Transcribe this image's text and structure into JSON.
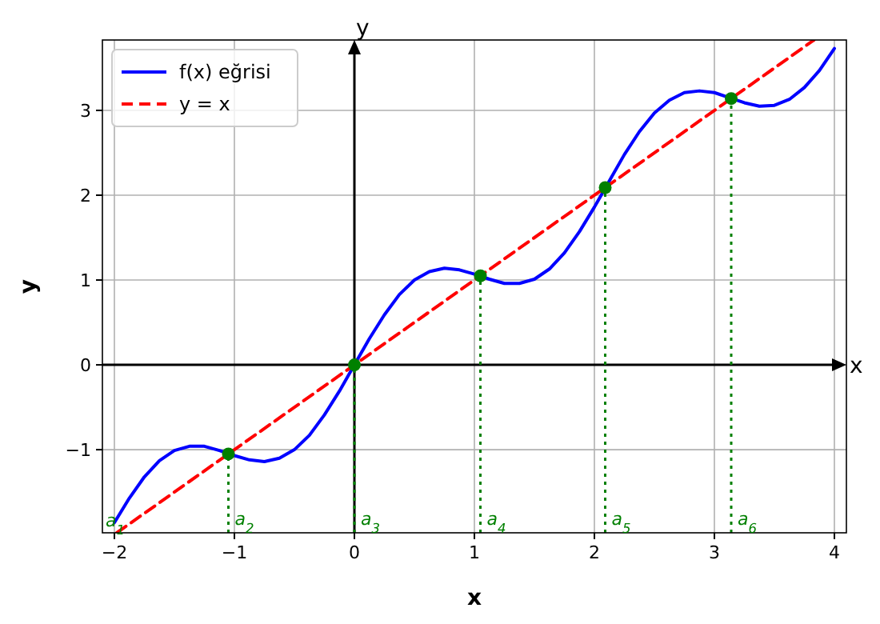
{
  "chart_data": {
    "type": "line",
    "xlabel": "x",
    "ylabel": "y",
    "xlim": [
      -2.1,
      4.1
    ],
    "ylim": [
      -1.98,
      3.83
    ],
    "xticks": [
      {
        "value": -2,
        "label": "−2"
      },
      {
        "value": -1,
        "label": "−1"
      },
      0,
      1,
      2,
      3,
      4
    ],
    "yticks": [
      {
        "value": -1,
        "label": "−1"
      },
      0,
      1,
      2,
      3
    ],
    "grid": true,
    "legend": "top left",
    "series": [
      {
        "name": "f(x) eğrisi",
        "color": "#0000ff",
        "line_style": "solid",
        "x": [
          -2,
          -1.875,
          -1.75,
          -1.625,
          -1.5,
          -1.375,
          -1.25,
          -1.125,
          -1,
          -0.875,
          -0.75,
          -0.625,
          -0.5,
          -0.375,
          -0.25,
          -0.125,
          0,
          0.125,
          0.25,
          0.375,
          0.5,
          0.625,
          0.75,
          0.875,
          1,
          1.125,
          1.25,
          1.375,
          1.5,
          1.625,
          1.75,
          1.875,
          2,
          2.125,
          2.25,
          2.375,
          2.5,
          2.625,
          2.75,
          2.875,
          3,
          3.125,
          3.25,
          3.375,
          3.5,
          3.625,
          3.75,
          3.875,
          4
        ],
        "values": [
          -1.86,
          -1.57,
          -1.32,
          -1.13,
          -1.01,
          -0.96,
          -0.96,
          -1.01,
          -1.07,
          -1.12,
          -1.14,
          -1.1,
          -1,
          -0.83,
          -0.59,
          -0.31,
          0,
          0.31,
          0.59,
          0.83,
          1,
          1.1,
          1.14,
          1.12,
          1.07,
          1.01,
          0.96,
          0.96,
          1.01,
          1.13,
          1.32,
          1.57,
          1.86,
          2.17,
          2.48,
          2.75,
          2.97,
          3.12,
          3.21,
          3.23,
          3.21,
          3.15,
          3.09,
          3.05,
          3.06,
          3.13,
          3.27,
          3.47,
          3.73
        ]
      },
      {
        "name": "y = x",
        "color": "#ff0000",
        "line_style": "dashed",
        "x": [
          -1.98,
          3.83
        ],
        "values": [
          -1.98,
          3.83
        ]
      },
      {
        "type": "scatter",
        "color": "#008000",
        "marker": "circle",
        "x": [
          -1.05,
          0,
          1.05,
          2.09,
          3.14
        ],
        "values": [
          -1.05,
          0,
          1.05,
          2.09,
          3.14
        ]
      },
      {
        "color": "#008000",
        "line_style": "dotted",
        "x": [
          -1.05,
          -1.05
        ],
        "values": [
          -1.98,
          -1.05
        ]
      },
      {
        "color": "#008000",
        "line_style": "dotted",
        "x": [
          0,
          0
        ],
        "values": [
          -1.98,
          0
        ]
      },
      {
        "color": "#008000",
        "line_style": "dotted",
        "x": [
          1.05,
          1.05
        ],
        "values": [
          -1.98,
          1.05
        ]
      },
      {
        "color": "#008000",
        "line_style": "dotted",
        "x": [
          2.09,
          2.09
        ],
        "values": [
          -1.98,
          2.09
        ]
      },
      {
        "color": "#008000",
        "line_style": "dotted",
        "x": [
          3.14,
          3.14
        ],
        "values": [
          -1.98,
          3.14
        ]
      }
    ],
    "annotations": [
      "x",
      "y",
      "a$_{1}$",
      {
        "text": "a$_{2}$",
        "x": -1.05,
        "y": -1.98
      },
      {
        "text": "a$_{3}$",
        "x": 0,
        "y": -1.98
      },
      {
        "text": "a$_{4}$",
        "x": 1.05,
        "y": -1.98
      },
      {
        "text": "a$_{5}$",
        "x": 2.09,
        "y": -1.98
      },
      {
        "text": "a$_{6}$",
        "x": 3.14,
        "y": -1.98
      }
    ]
  }
}
